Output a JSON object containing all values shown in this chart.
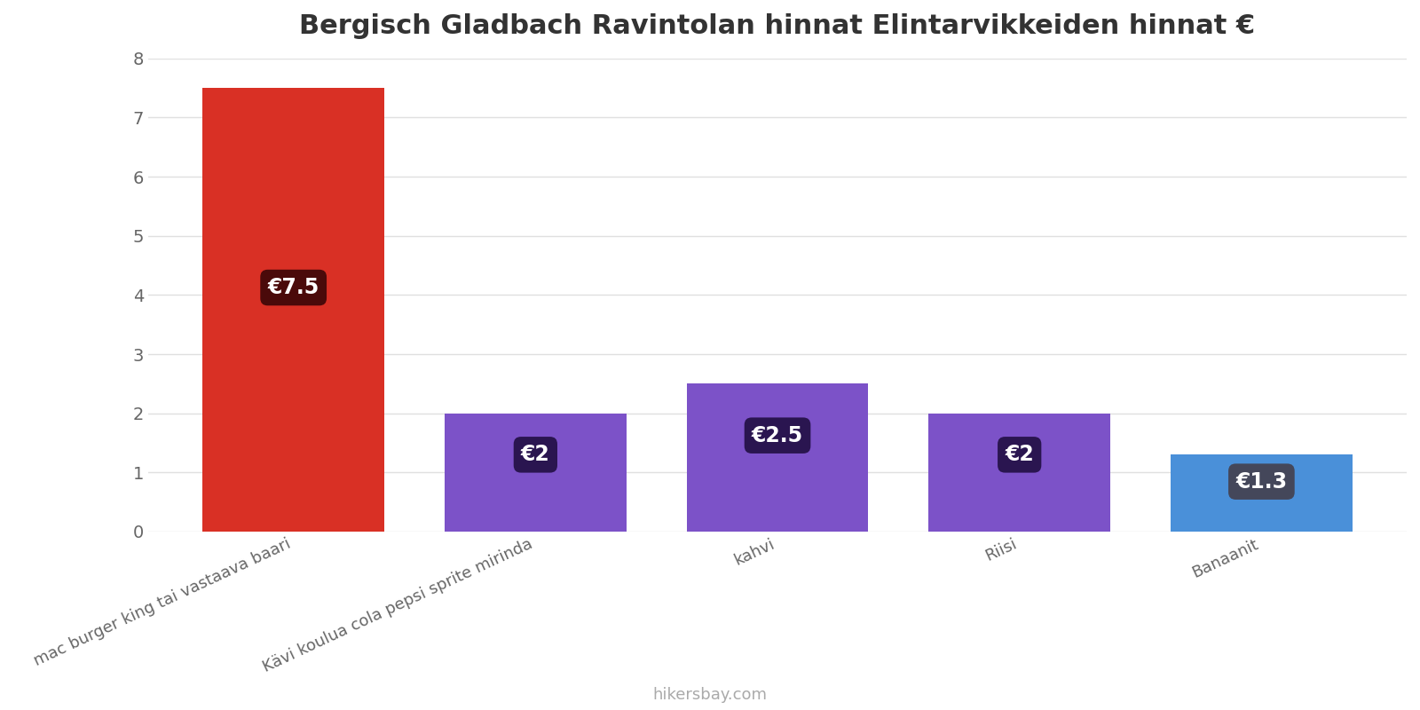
{
  "title": "Bergisch Gladbach Ravintolan hinnat Elintarvikkeiden hinnat €",
  "categories": [
    "mac burger king tai vastaava baari",
    "Kävi koulua cola pepsi sprite mirinda",
    "kahvi",
    "Riisi",
    "Banaanit"
  ],
  "values": [
    7.5,
    2.0,
    2.5,
    2.0,
    1.3
  ],
  "bar_colors": [
    "#d93025",
    "#7c52c8",
    "#7c52c8",
    "#7c52c8",
    "#4a90d9"
  ],
  "label_bg_colors": [
    "#4a0a0a",
    "#2a1550",
    "#2a1550",
    "#2a1550",
    "#44475a"
  ],
  "labels": [
    "€7.5",
    "€2",
    "€2.5",
    "€2",
    "€1.3"
  ],
  "ylim": [
    0,
    8
  ],
  "yticks": [
    0,
    1,
    2,
    3,
    4,
    5,
    6,
    7,
    8
  ],
  "watermark": "hikersbay.com",
  "title_fontsize": 22,
  "background_color": "#ffffff",
  "grid_color": "#e0e0e0",
  "bar_width": 0.75,
  "label_fontsize": 17
}
